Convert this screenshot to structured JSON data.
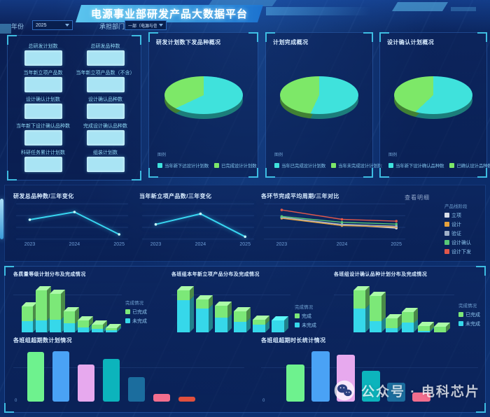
{
  "header": {
    "title": "电源事业部研发产品大数据平台"
  },
  "filters": {
    "year_label": "年份",
    "year_value": "2025",
    "dept_label": "承担部门",
    "dept_value": "一部（电源与信息系统）"
  },
  "stats": {
    "items": [
      {
        "label": "总研发计划数",
        "value": ""
      },
      {
        "label": "总研发品种数",
        "value": ""
      },
      {
        "label": "当年新立项产品数",
        "value": ""
      },
      {
        "label": "当年新立项产品数（不含）",
        "value": ""
      },
      {
        "label": "设计确认计划数",
        "value": ""
      },
      {
        "label": "设计确认品种数",
        "value": ""
      },
      {
        "label": "当年新下设计确认品种数",
        "value": ""
      },
      {
        "label": "完成设计确认品种数",
        "value": ""
      },
      {
        "label": "科研任务累计计划数",
        "value": ""
      },
      {
        "label": "组装计划数",
        "value": ""
      }
    ]
  },
  "watermark": {
    "icon": "wechat-icon",
    "text": "公众号 · 电科芯片"
  },
  "chart_data": [
    {
      "type": "pie",
      "render": "pie",
      "title": "研发计划数下发品种概况",
      "legend_note": "图例",
      "legend_position": "bottom",
      "slices": [
        {
          "name": "当年新下达设计计划数",
          "value": 68,
          "color": "#3fe2dc"
        },
        {
          "name": "已完成设计计划数",
          "value": 32,
          "color": "#7de868"
        }
      ]
    },
    {
      "type": "pie",
      "render": "pie",
      "title": "计划完成概况",
      "legend_note": "图例",
      "legend_position": "bottom",
      "slices": [
        {
          "name": "当年已完成设计计划数",
          "value": 57,
          "color": "#3fe2dc"
        },
        {
          "name": "当年未完成设计计划数",
          "value": 43,
          "color": "#7de868"
        }
      ]
    },
    {
      "type": "pie",
      "render": "pie",
      "title": "设计确认计划概况",
      "legend_note": "图例",
      "legend_position": "bottom",
      "slices": [
        {
          "name": "当年新下设计确认品种数",
          "value": 63,
          "color": "#3fe2dc"
        },
        {
          "name": "已确认设计品种数",
          "value": 37,
          "color": "#7de868"
        }
      ]
    },
    {
      "type": "line",
      "render": "line",
      "title": "研发总品种数/三年变化",
      "x": [
        "2023",
        "2024",
        "2025"
      ],
      "values": [
        62,
        88,
        12
      ],
      "color": "#38d6f0",
      "ylim": [
        0,
        100
      ],
      "grid": true
    },
    {
      "type": "line",
      "render": "line",
      "title": "当年新立项产品数/三年变化",
      "x": [
        "2023",
        "2024",
        "2025"
      ],
      "values": [
        46,
        82,
        4
      ],
      "color": "#38d6f0",
      "ylim": [
        0,
        100
      ],
      "grid": true
    },
    {
      "type": "line",
      "render": "line",
      "title": "各环节完成平均周期/三年对比",
      "detail_button": "查看明细",
      "legend_title": "产品线阶段",
      "legend_position": "right",
      "x": [
        "2023",
        "2024",
        "2025"
      ],
      "ylim": [
        0,
        100
      ],
      "grid": true,
      "series": [
        {
          "name": "立项",
          "color": "#d8dee8",
          "values": [
            69,
            45,
            33
          ]
        },
        {
          "name": "设计",
          "color": "#e6a23c",
          "values": [
            67,
            42,
            37
          ]
        },
        {
          "name": "验证",
          "color": "#9fb0c8",
          "values": [
            70,
            46,
            40
          ]
        },
        {
          "name": "设计确认",
          "color": "#58c878",
          "values": [
            73,
            53,
            47
          ]
        },
        {
          "name": "设计下发",
          "color": "#e0574a",
          "values": [
            95,
            63,
            57
          ]
        }
      ]
    },
    {
      "type": "bar",
      "render": "stack3d",
      "stacked": true,
      "title": "各质量等级计划分布及完成情况",
      "legend_title": "完成情况",
      "legend_position": "right",
      "series": [
        {
          "name": "已完成",
          "color": "#7ce878",
          "values": [
            23,
            46,
            40,
            19,
            10,
            6,
            3
          ]
        },
        {
          "name": "未完成",
          "color": "#36d8ea",
          "values": [
            17,
            19,
            20,
            14,
            8,
            6,
            3
          ]
        }
      ]
    },
    {
      "type": "bar",
      "render": "stack3d",
      "stacked": true,
      "title": "各班组本年新立项产品分布及完成情况",
      "legend_title": "完成情况",
      "legend_position": "right",
      "series": [
        {
          "name": "完成",
          "color": "#7ce878",
          "values": [
            15,
            14,
            19,
            16,
            7,
            0
          ]
        },
        {
          "name": "未完成",
          "color": "#36d8ea",
          "values": [
            49,
            36,
            22,
            16,
            12,
            18
          ]
        }
      ]
    },
    {
      "type": "bar",
      "render": "stack3d",
      "stacked": true,
      "title": "各班组设计确认品种计划分布及完成情况",
      "legend_title": "完成情况",
      "legend_position": "right",
      "series": [
        {
          "name": "已完成",
          "color": "#7ce878",
          "values": [
            29,
            39,
            15,
            17,
            8,
            9
          ]
        },
        {
          "name": "未完成",
          "color": "#36d8ea",
          "values": [
            37,
            18,
            7,
            15,
            2,
            0
          ]
        }
      ]
    },
    {
      "type": "bar",
      "render": "bars",
      "title": "各班组超期数计划情况",
      "y_tick": "0",
      "values": [
        63,
        64,
        47,
        54,
        31,
        10,
        6
      ],
      "colors": [
        "#6ef28e",
        "#4aa2f5",
        "#e7a9ee",
        "#0cb4bc",
        "#1b6d9e",
        "#f26e8e",
        "#e0503e"
      ]
    },
    {
      "type": "bar",
      "render": "bars",
      "title": "各班组超期时长统计情况",
      "y_tick": "0",
      "values": [
        45,
        61,
        57,
        37,
        23,
        11
      ],
      "colors": [
        "#6ef28e",
        "#4aa2f5",
        "#e7a9ee",
        "#0cb4bc",
        "#1b6d9e",
        "#f26e8e"
      ]
    }
  ]
}
